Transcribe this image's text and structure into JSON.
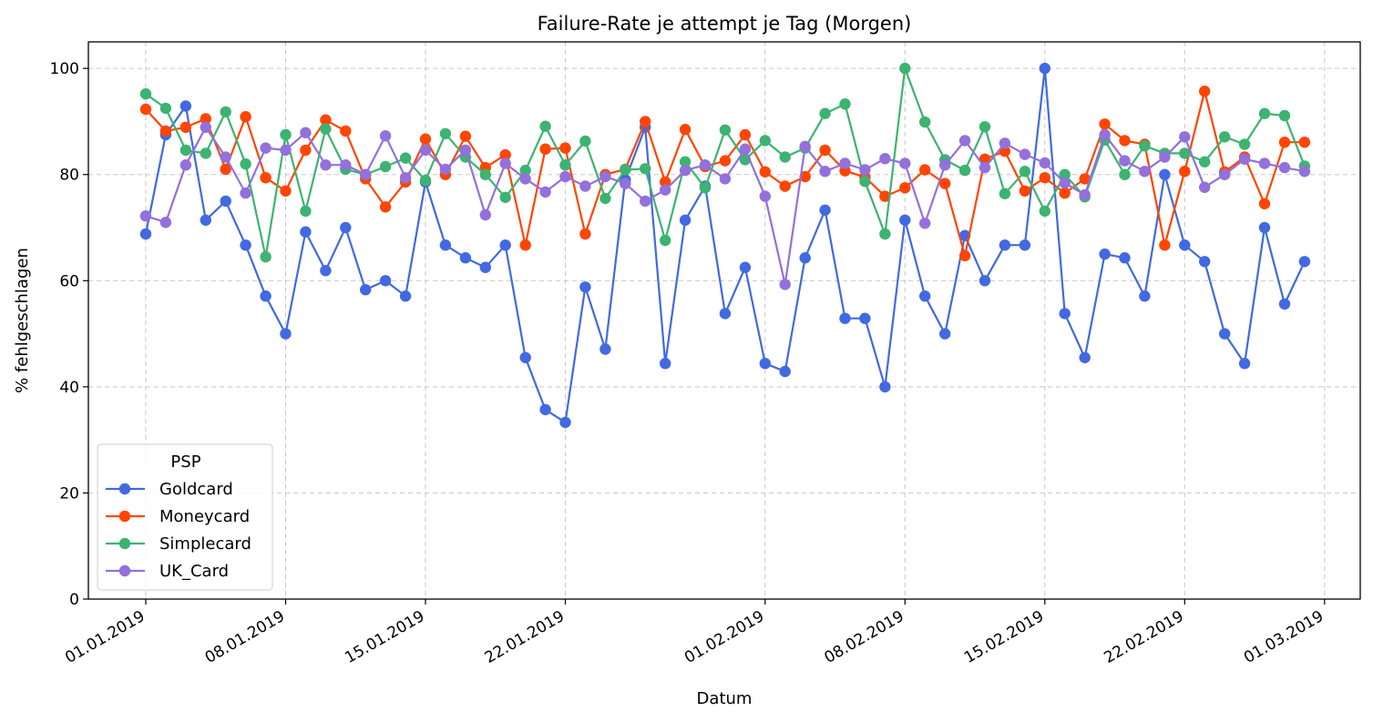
{
  "chart_data": {
    "type": "line",
    "title": "Failure-Rate je attempt je Tag (Morgen)",
    "xlabel": "Datum",
    "ylabel": "% fehlgeschlagen",
    "ylim": [
      0,
      105
    ],
    "yticks": [
      0,
      20,
      40,
      60,
      80,
      100
    ],
    "xtick_labels": [
      "01.01.2019",
      "08.01.2019",
      "15.01.2019",
      "22.01.2019",
      "01.02.2019",
      "08.02.2019",
      "15.02.2019",
      "22.02.2019",
      "01.03.2019"
    ],
    "xtick_dates": [
      "2019-01-01",
      "2019-01-08",
      "2019-01-15",
      "2019-01-22",
      "2019-02-01",
      "2019-02-08",
      "2019-02-15",
      "2019-02-22",
      "2019-03-01"
    ],
    "x_start": "2019-01-01",
    "x_end": "2019-02-28",
    "grid": true,
    "legend": {
      "title": "PSP",
      "location": "lower-left"
    },
    "series": [
      {
        "name": "Goldcard",
        "color": "#4169e1",
        "values": [
          68.8,
          87.5,
          92.9,
          71.4,
          75.0,
          66.7,
          57.1,
          50.0,
          69.2,
          61.9,
          70.0,
          58.3,
          60.0,
          57.1,
          78.6,
          66.7,
          64.3,
          62.5,
          66.7,
          45.5,
          35.7,
          33.3,
          58.8,
          47.1,
          79.0,
          88.9,
          44.4,
          71.4,
          77.8,
          53.8,
          62.5,
          44.4,
          42.9,
          64.3,
          73.3,
          52.9,
          52.9,
          40.0,
          71.4,
          57.1,
          50.0,
          68.5,
          60.0,
          66.7,
          66.7,
          100.0,
          53.8,
          45.5,
          65.0,
          64.3,
          57.1,
          80.0,
          66.7,
          63.6,
          50.0,
          44.4,
          70.0,
          55.6,
          63.6
        ]
      },
      {
        "name": "Moneycard",
        "color": "#ff4500",
        "values": [
          92.3,
          88.2,
          88.9,
          90.5,
          81.0,
          90.9,
          79.4,
          76.9,
          84.6,
          90.3,
          88.2,
          79.2,
          73.9,
          78.6,
          86.7,
          80.0,
          87.2,
          81.3,
          83.7,
          66.7,
          84.8,
          85.0,
          68.8,
          80.0,
          81.0,
          90.0,
          78.6,
          88.5,
          81.5,
          82.6,
          87.5,
          80.5,
          77.8,
          79.6,
          84.6,
          80.7,
          79.5,
          75.9,
          77.5,
          80.9,
          78.3,
          64.7,
          82.9,
          84.4,
          76.9,
          79.4,
          76.5,
          79.2,
          89.5,
          86.4,
          85.7,
          66.7,
          80.6,
          95.7,
          80.5,
          83.3,
          74.5,
          86.1,
          86.1
        ]
      },
      {
        "name": "Simplecard",
        "color": "#3cb371",
        "values": [
          95.2,
          92.5,
          84.6,
          84.0,
          91.8,
          82.0,
          64.5,
          87.5,
          73.1,
          88.6,
          81.0,
          80.0,
          81.5,
          83.1,
          78.9,
          87.7,
          83.3,
          80.0,
          75.7,
          80.8,
          89.1,
          81.8,
          86.3,
          75.5,
          80.9,
          81.1,
          67.6,
          82.4,
          77.5,
          88.4,
          82.8,
          86.4,
          83.3,
          85.0,
          91.5,
          93.3,
          78.7,
          68.8,
          100.0,
          89.9,
          82.8,
          80.8,
          89.0,
          76.4,
          80.6,
          73.1,
          80.0,
          75.8,
          86.5,
          80.0,
          85.4,
          84.0,
          84.0,
          82.4,
          87.1,
          85.7,
          91.5,
          91.1,
          81.6
        ]
      },
      {
        "name": "UK_Card",
        "color": "#9370db",
        "values": [
          72.2,
          71.0,
          81.8,
          88.9,
          83.3,
          76.5,
          85.0,
          84.6,
          87.9,
          81.8,
          81.8,
          80.0,
          87.3,
          79.4,
          84.6,
          81.0,
          84.6,
          72.4,
          82.1,
          79.2,
          76.7,
          79.6,
          77.8,
          79.6,
          78.3,
          75.0,
          77.1,
          80.8,
          81.8,
          79.2,
          84.8,
          75.9,
          59.3,
          85.3,
          80.6,
          82.1,
          80.9,
          83.0,
          82.1,
          70.8,
          81.8,
          86.4,
          81.3,
          85.9,
          83.8,
          82.2,
          78.4,
          76.2,
          87.5,
          82.6,
          80.6,
          83.3,
          87.1,
          77.6,
          80.0,
          82.9,
          82.1,
          81.3,
          80.6
        ]
      }
    ]
  }
}
